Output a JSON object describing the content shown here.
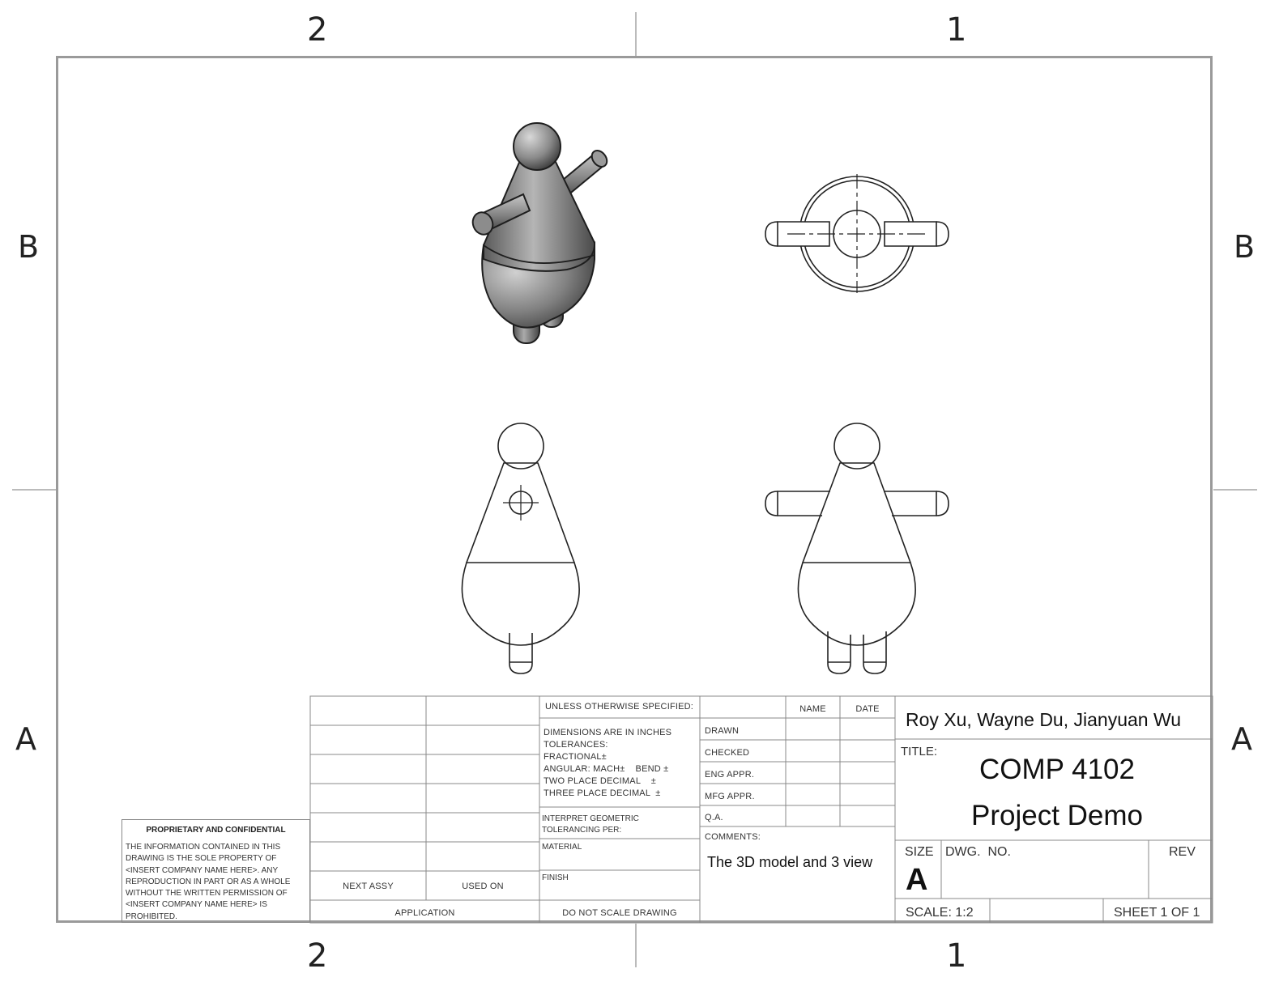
{
  "zones": {
    "top": [
      "2",
      "1"
    ],
    "bottom": [
      "2",
      "1"
    ],
    "left": [
      "B",
      "A"
    ],
    "right": [
      "B",
      "A"
    ]
  },
  "views": [
    "isometric-view",
    "top-view",
    "side-view",
    "front-view"
  ],
  "rev_table": {
    "next_assy": "NEXT ASSY",
    "used_on": "USED ON",
    "application": "APPLICATION"
  },
  "spec": {
    "header": "UNLESS OTHERWISE SPECIFIED:",
    "dims_lines": [
      "DIMENSIONS ARE IN INCHES",
      "TOLERANCES:",
      "FRACTIONAL±",
      "ANGULAR: MACH±    BEND ±",
      "TWO PLACE DECIMAL    ±",
      "THREE PLACE DECIMAL  ±"
    ],
    "interpret": [
      "INTERPRET GEOMETRIC",
      "TOLERANCING PER:"
    ],
    "material": "MATERIAL",
    "finish": "FINISH",
    "no_scale": "DO NOT SCALE DRAWING"
  },
  "approvals": {
    "name_header": "NAME",
    "date_header": "DATE",
    "rows": [
      "DRAWN",
      "CHECKED",
      "ENG APPR.",
      "MFG APPR.",
      "Q.A."
    ],
    "comments_label": "COMMENTS:",
    "comments": "The 3D model and 3 view"
  },
  "title_block": {
    "authors": "Roy Xu, Wayne Du, Jianyuan Wu",
    "title_label": "TITLE:",
    "title_line1": "COMP 4102",
    "title_line2": "Project Demo",
    "size_label": "SIZE",
    "size_value": "A",
    "dwg_no_label": "DWG.  NO.",
    "rev_label": "REV",
    "scale": "SCALE: 1:2",
    "sheet": "SHEET 1 OF 1"
  },
  "proprietary": {
    "heading": "PROPRIETARY AND CONFIDENTIAL",
    "body": "THE INFORMATION CONTAINED IN THIS DRAWING IS THE SOLE PROPERTY OF <INSERT COMPANY NAME HERE>.  ANY REPRODUCTION IN PART OR AS A WHOLE WITHOUT THE WRITTEN PERMISSION OF <INSERT COMPANY NAME HERE> IS PROHIBITED."
  }
}
